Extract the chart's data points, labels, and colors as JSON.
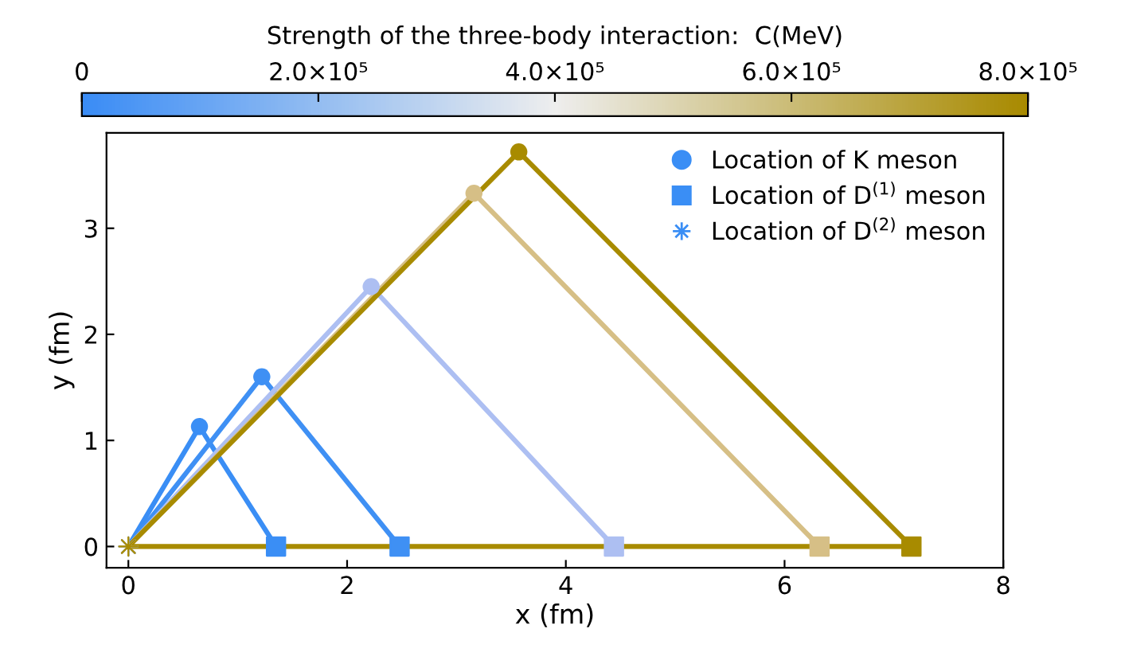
{
  "chart_data": {
    "type": "line",
    "xlabel": "x (fm)",
    "ylabel": "y (fm)",
    "clabel": "Strength of the three-body interaction:  C(MeV)",
    "xlim": [
      -0.2,
      8
    ],
    "ylim": [
      -0.2,
      3.9
    ],
    "xticks": [
      0,
      2,
      4,
      6,
      8
    ],
    "yticks": [
      0,
      1,
      2,
      3
    ],
    "clim": [
      0,
      800000
    ],
    "cticks": [
      0,
      {
        "value": 200000,
        "label": "2.0×10⁵"
      },
      {
        "value": 400000,
        "label": "4.0×10⁵"
      },
      {
        "value": 600000,
        "label": "6.0×10⁵"
      },
      {
        "value": 800000,
        "label": "8.0×10⁵"
      }
    ],
    "grid": false,
    "legend": "top right",
    "marker": "none",
    "series": [
      {
        "color": "#3a8ef5",
        "x": [
          0,
          0.65,
          1.35
        ],
        "values": [
          0,
          1.13,
          0
        ]
      },
      {
        "color": "#3f90f4",
        "x": [
          0,
          1.22,
          2.48
        ],
        "values": [
          0,
          1.6,
          0
        ]
      },
      {
        "color": "#adbff2",
        "x": [
          0,
          2.22,
          4.44
        ],
        "values": [
          0,
          2.45,
          0
        ]
      },
      {
        "color": "#d6bf86",
        "x": [
          0,
          3.16,
          6.32
        ],
        "values": [
          0,
          3.33,
          0
        ]
      },
      {
        "color": "#a88b00",
        "x": [
          0,
          3.57,
          7.16
        ],
        "values": [
          0,
          3.72,
          0
        ]
      },
      {
        "color": "#a88b00",
        "x": [
          0,
          7.16
        ],
        "values": [
          0,
          0
        ]
      },
      {
        "type": "scatter",
        "name": "Location of K meson",
        "marker": "circle",
        "x": [
          0.65,
          1.22,
          2.22,
          3.16,
          3.57
        ],
        "values": [
          1.13,
          1.6,
          2.45,
          3.33,
          3.72
        ],
        "colors": [
          "#3a8ef5",
          "#3f90f4",
          "#adbff2",
          "#d6bf86",
          "#a88b00"
        ]
      },
      {
        "type": "scatter",
        "name": "Location of D$^{(1)}$ meson",
        "marker": "square",
        "x": [
          1.35,
          2.48,
          4.44,
          6.32,
          7.16
        ],
        "values": [
          0,
          0,
          0,
          0,
          0
        ],
        "colors": [
          "#3a8ef5",
          "#3f90f4",
          "#adbff2",
          "#d6bf86",
          "#a88b00"
        ]
      },
      {
        "type": "scatter",
        "name": "Location of D$^{(2)}$ meson",
        "marker": "star",
        "x": [
          0,
          0,
          0,
          0,
          0
        ],
        "values": [
          0,
          0,
          0,
          0,
          0
        ],
        "colors": [
          "#3a8ef5",
          "#3f90f4",
          "#adbff2",
          "#d6bf86",
          "#a88b00"
        ]
      }
    ]
  }
}
